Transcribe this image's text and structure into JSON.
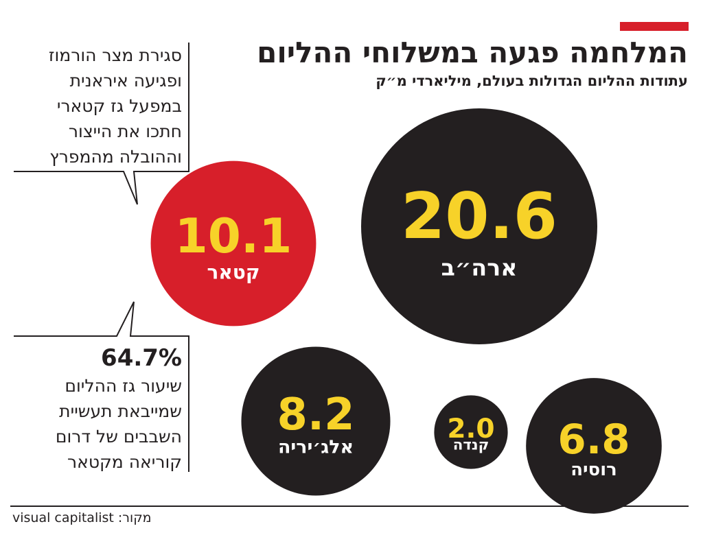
{
  "chart_data": {
    "type": "bubble",
    "title": "המלחמה פגעה במשלוחי ההליום",
    "subtitle": "עתודות ההליום הגדולות בעולם, מיליארדי מ״ק",
    "categories": [
      "קטאר",
      "ארה״ב",
      "אלג׳יריה",
      "קנדה",
      "רוסיה"
    ],
    "values": [
      10.1,
      20.6,
      8.2,
      2.0,
      6.8
    ],
    "value_labels": [
      "10.1",
      "20.6",
      "8.2",
      "2.0",
      "6.8"
    ],
    "colors": [
      "#d71f2a",
      "#231f20",
      "#231f20",
      "#231f20",
      "#231f20"
    ],
    "value_label_color": "#f7d229",
    "annotations": [
      {
        "lines": [
          "סגירת מצר הורמוז",
          "ופגיעה איראנית",
          "במפעל גז קטארי",
          "חתכו את הייצור",
          "וההובלה מהמפרץ"
        ]
      },
      {
        "value": "64.7%",
        "lines": [
          "שיעור גז ההליום",
          "שמייבאת תעשיית",
          "השבבים של דרום",
          "קוריאה מקטאר"
        ]
      }
    ],
    "source": "מקור: visual capitalist"
  }
}
